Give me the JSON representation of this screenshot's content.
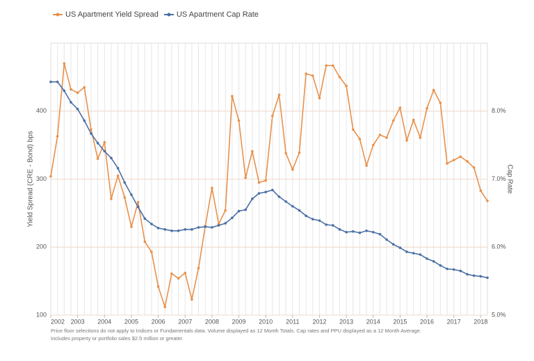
{
  "chart_data": {
    "type": "line",
    "legend": "top-left",
    "grid": true,
    "y_label": "Yield Spread (CRE - Bond) bps",
    "y2_label": "Cap Rate",
    "footnote": [
      "Price floor selections do not apply to Indices or Fundamentals data. Volume displayed as 12 Month Totals. Cap rates and PPU displayed as a 12 Month Average.",
      "Includes property or portfolio sales $2.5 million or greater."
    ],
    "x": [
      2002,
      2002.25,
      2002.5,
      2002.75,
      2003,
      2003.25,
      2003.5,
      2003.75,
      2004,
      2004.25,
      2004.5,
      2004.75,
      2005,
      2005.25,
      2005.5,
      2005.75,
      2006,
      2006.25,
      2006.5,
      2006.75,
      2007,
      2007.25,
      2007.5,
      2007.75,
      2008,
      2008.25,
      2008.5,
      2008.75,
      2009,
      2009.25,
      2009.5,
      2009.75,
      2010,
      2010.25,
      2010.5,
      2010.75,
      2011,
      2011.25,
      2011.5,
      2011.75,
      2012,
      2012.25,
      2012.5,
      2012.75,
      2013,
      2013.25,
      2013.5,
      2013.75,
      2014,
      2014.25,
      2014.5,
      2014.75,
      2015,
      2015.25,
      2015.5,
      2015.75,
      2016,
      2016.25,
      2016.5,
      2016.75,
      2017,
      2017.25,
      2017.5,
      2017.75,
      2018,
      2018.25
    ],
    "xlim": [
      2002,
      2018.25
    ],
    "xticks": [
      2002,
      2003,
      2004,
      2005,
      2006,
      2007,
      2008,
      2009,
      2010,
      2011,
      2012,
      2013,
      2014,
      2015,
      2016,
      2017,
      2018
    ],
    "ylim": [
      100,
      500
    ],
    "yticks": [
      100,
      200,
      300,
      400
    ],
    "y2lim": [
      5,
      9
    ],
    "y2ticks": [
      {
        "value": 5,
        "label": "5.0%"
      },
      {
        "value": 6,
        "label": "6.0%"
      },
      {
        "value": 7,
        "label": "7.0%"
      },
      {
        "value": 8,
        "label": "8.0%"
      }
    ],
    "series": [
      {
        "name": "US Apartment Yield Spread",
        "color": "#e8904a",
        "values": [
          304,
          363,
          470,
          432,
          427,
          435,
          373,
          330,
          354,
          271,
          305,
          273,
          230,
          266,
          208,
          193,
          142,
          112,
          161,
          154,
          162,
          123,
          169,
          231,
          287,
          234,
          254,
          422,
          386,
          302,
          341,
          295,
          298,
          393,
          424,
          338,
          314,
          339,
          455,
          452,
          419,
          467,
          467,
          450,
          437,
          373,
          359,
          320,
          350,
          365,
          361,
          386,
          405,
          357,
          387,
          361,
          404,
          431,
          412,
          323,
          328,
          333,
          326,
          317,
          283,
          268
        ]
      },
      {
        "name": "US Apartment Cap Rate",
        "color": "#4a6fa5",
        "axis": "y2",
        "values": [
          8.43,
          8.43,
          8.3,
          8.13,
          8.03,
          7.86,
          7.67,
          7.53,
          7.41,
          7.31,
          7.16,
          6.95,
          6.77,
          6.59,
          6.42,
          6.34,
          6.28,
          6.26,
          6.24,
          6.24,
          6.26,
          6.26,
          6.29,
          6.3,
          6.29,
          6.32,
          6.35,
          6.43,
          6.53,
          6.55,
          6.71,
          6.79,
          6.81,
          6.84,
          6.74,
          6.67,
          6.6,
          6.54,
          6.46,
          6.41,
          6.39,
          6.33,
          6.32,
          6.26,
          6.22,
          6.23,
          6.21,
          6.24,
          6.22,
          6.19,
          6.11,
          6.04,
          5.99,
          5.93,
          5.91,
          5.89,
          5.83,
          5.79,
          5.73,
          5.68,
          5.67,
          5.65,
          5.6,
          5.58,
          5.57,
          5.55
        ]
      }
    ]
  }
}
